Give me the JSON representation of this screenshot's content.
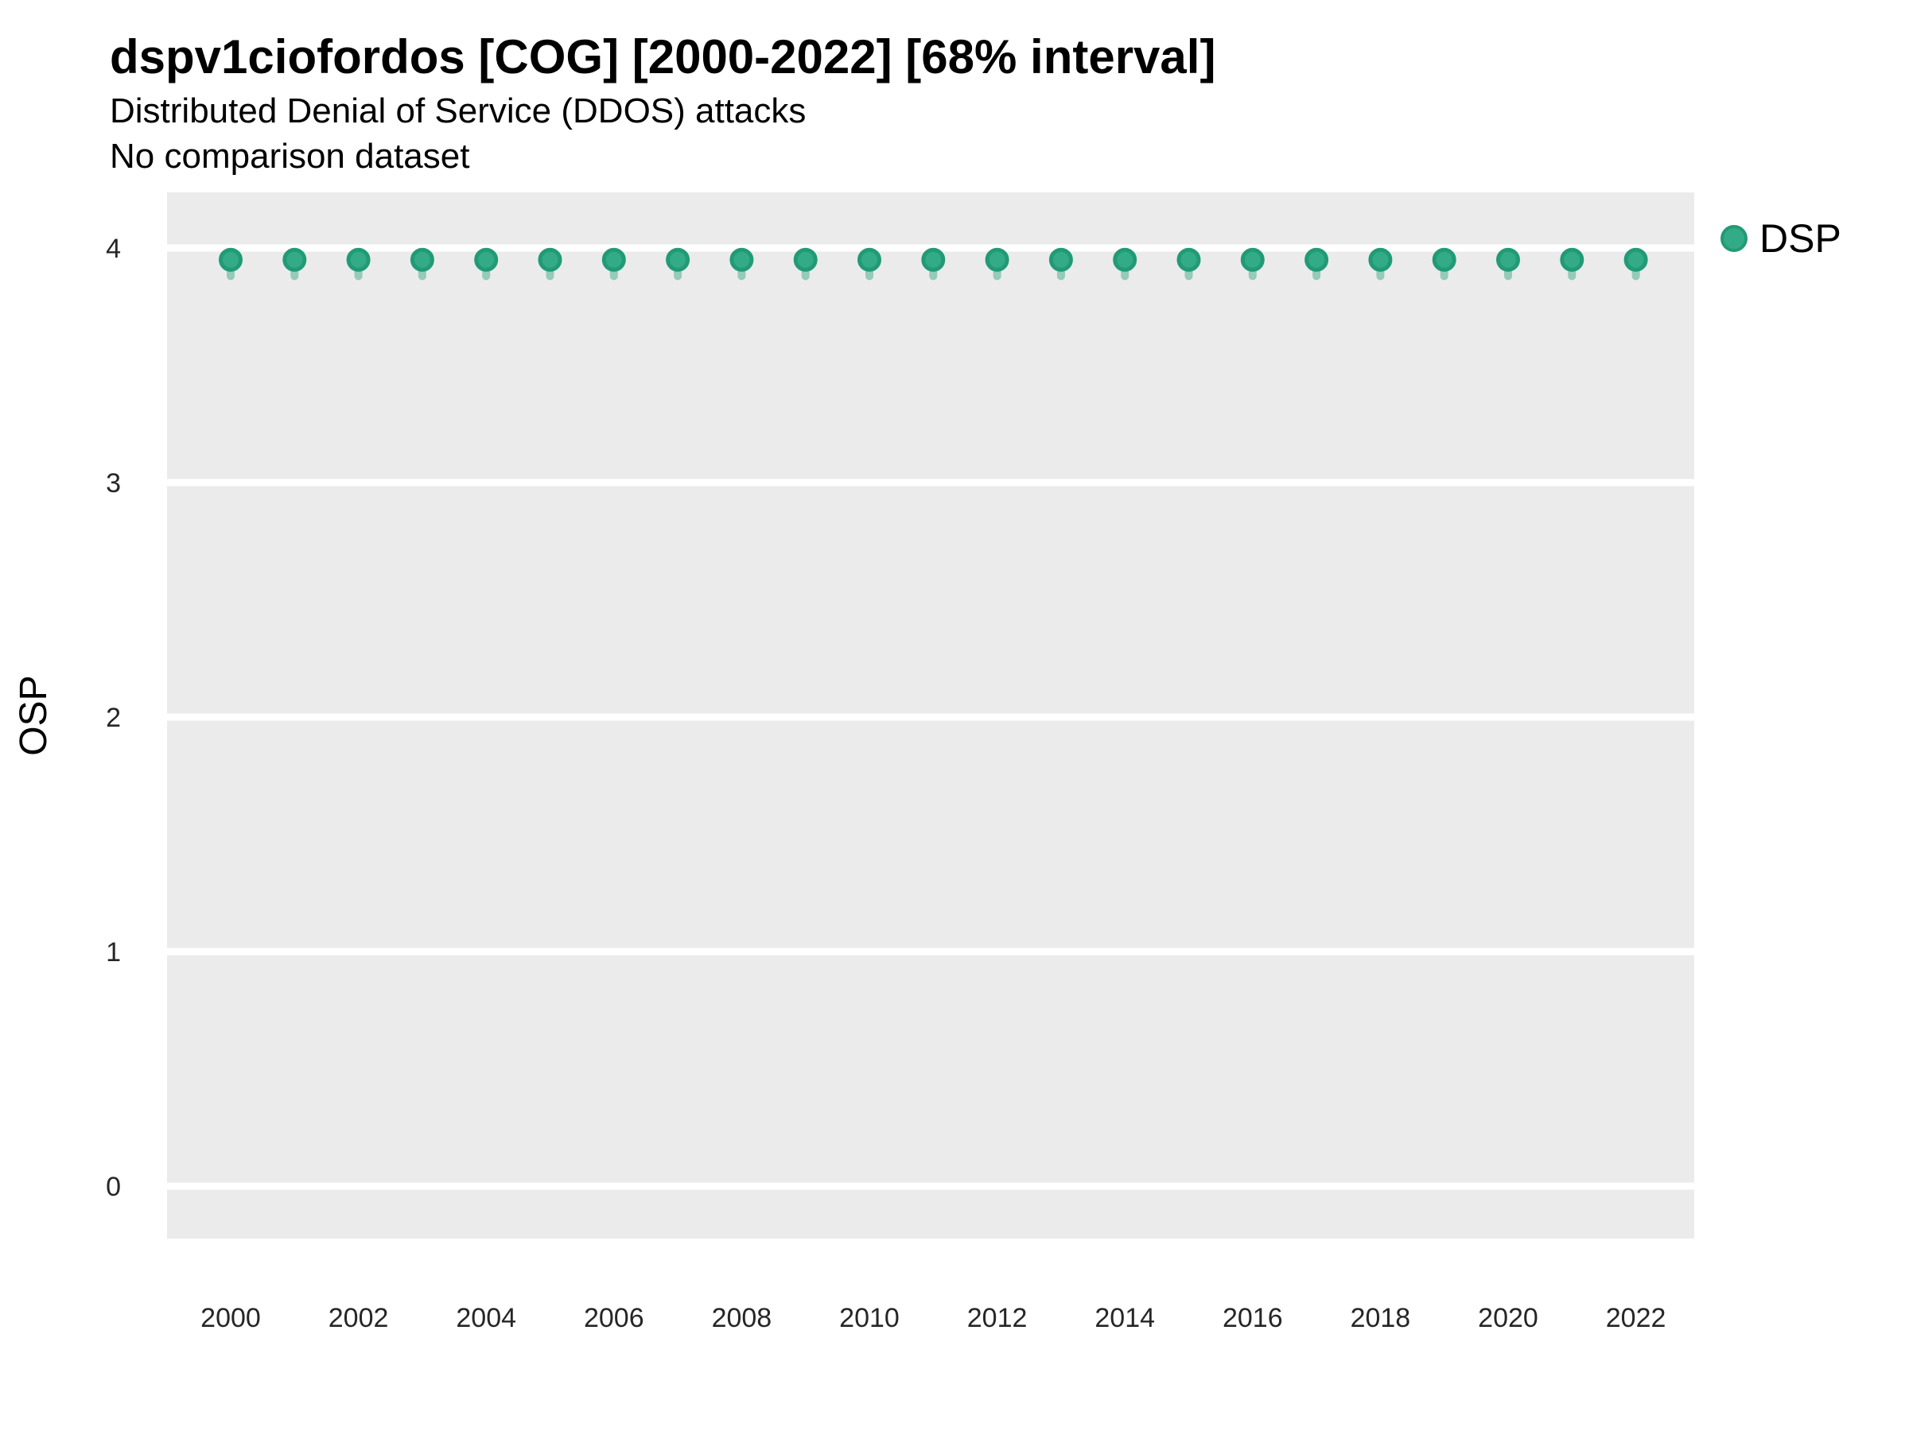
{
  "header": {
    "title": "dspv1ciofordos [COG] [2000-2022] [68% interval]",
    "subtitle1": "Distributed Denial of Service (DDOS) attacks",
    "subtitle2": "No comparison dataset"
  },
  "legend": {
    "items": [
      {
        "label": "DSP",
        "color": "#2aa57f"
      }
    ],
    "position": "right-top"
  },
  "colors": {
    "point_fill": "#33ab86",
    "point_stroke": "#219a76",
    "interval_line": "rgba(42,165,127,0.45)",
    "panel_bg": "#ebebeb",
    "grid": "#ffffff",
    "tick_text": "#262626",
    "text": "#000000"
  },
  "chart_data": {
    "type": "scatter",
    "subtype": "pointrange",
    "title": "dspv1ciofordos [COG] [2000-2022] [68% interval]",
    "subtitle": [
      "Distributed Denial of Service (DDOS) attacks",
      "No comparison dataset"
    ],
    "interval_label": "68% interval",
    "xlabel": "",
    "ylabel": "OSP",
    "x": [
      2000,
      2001,
      2002,
      2003,
      2004,
      2005,
      2006,
      2007,
      2008,
      2009,
      2010,
      2011,
      2012,
      2013,
      2014,
      2015,
      2016,
      2017,
      2018,
      2019,
      2020,
      2021,
      2022
    ],
    "series": [
      {
        "name": "DSP",
        "values": [
          3.95,
          3.95,
          3.95,
          3.95,
          3.95,
          3.95,
          3.95,
          3.95,
          3.95,
          3.95,
          3.95,
          3.95,
          3.95,
          3.95,
          3.95,
          3.95,
          3.95,
          3.95,
          3.95,
          3.95,
          3.95,
          3.95,
          3.95
        ],
        "interval_low": [
          3.88,
          3.88,
          3.88,
          3.88,
          3.88,
          3.88,
          3.88,
          3.88,
          3.88,
          3.88,
          3.88,
          3.88,
          3.88,
          3.88,
          3.88,
          3.88,
          3.88,
          3.88,
          3.88,
          3.88,
          3.88,
          3.88,
          3.88
        ],
        "interval_high": [
          3.98,
          3.98,
          3.98,
          3.98,
          3.98,
          3.98,
          3.98,
          3.98,
          3.98,
          3.98,
          3.98,
          3.98,
          3.98,
          3.98,
          3.98,
          3.98,
          3.98,
          3.98,
          3.98,
          3.98,
          3.98,
          3.98,
          3.98
        ],
        "color": "#2aa57f"
      }
    ],
    "x_ticks": [
      2000,
      2002,
      2004,
      2006,
      2008,
      2010,
      2012,
      2014,
      2016,
      2018,
      2020,
      2022
    ],
    "y_ticks": [
      0,
      1,
      2,
      3,
      4
    ],
    "ylim": [
      -0.24,
      4.24
    ],
    "xlim": [
      1999,
      2023
    ],
    "grid": {
      "major": "white horizontal",
      "minor": "none"
    },
    "legend_position": "right"
  }
}
